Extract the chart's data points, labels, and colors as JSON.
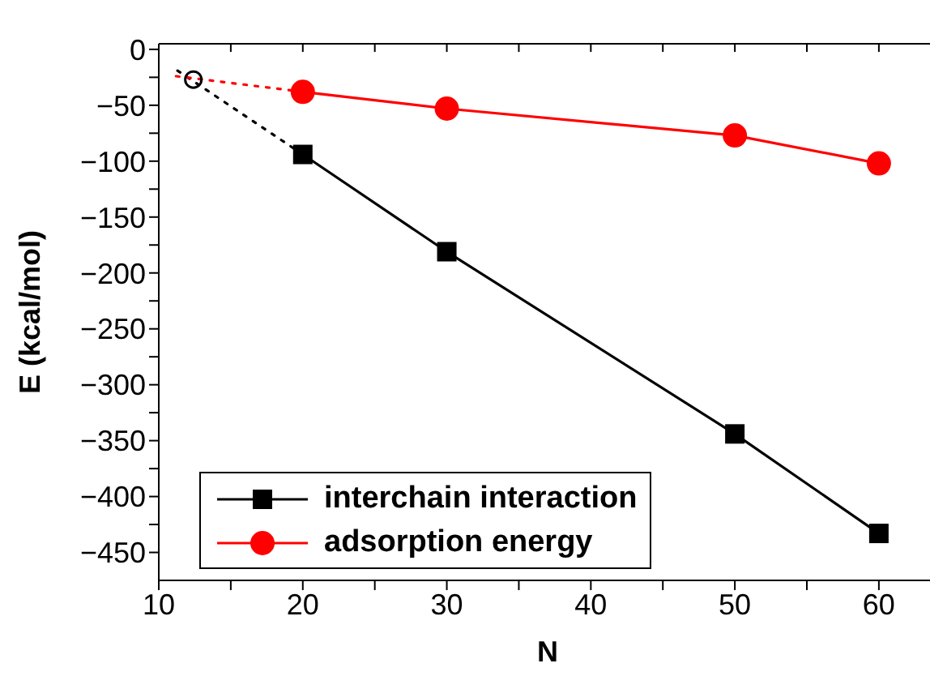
{
  "chart_data": {
    "type": "line",
    "xlabel": "N",
    "ylabel": "E (kcal/mol)",
    "xlim": [
      10,
      64
    ],
    "ylim": [
      -475,
      5
    ],
    "xticks": [
      10,
      {
        "value": 15,
        "label": null
      },
      20,
      {
        "value": 25,
        "label": null
      },
      30,
      {
        "value": 35,
        "label": null
      },
      40,
      {
        "value": 45,
        "label": null
      },
      50,
      {
        "value": 55,
        "label": null
      },
      60
    ],
    "yticks": [
      0,
      {
        "value": -25,
        "label": null
      },
      -50,
      {
        "value": -75,
        "label": null
      },
      -100,
      {
        "value": -125,
        "label": null
      },
      -150,
      {
        "value": -175,
        "label": null
      },
      -200,
      {
        "value": -225,
        "label": null
      },
      -250,
      {
        "value": -275,
        "label": null
      },
      -300,
      {
        "value": -325,
        "label": null
      },
      -350,
      {
        "value": -375,
        "label": null
      },
      -400,
      {
        "value": -425,
        "label": null
      },
      -450
    ],
    "series": [
      {
        "name": "interchain interaction",
        "color": "#000000",
        "x": [
          20,
          30,
          50,
          60
        ],
        "values": [
          -94,
          -181,
          -344,
          -433
        ],
        "marker": "square",
        "line_style": "solid"
      },
      {
        "name": "adsorption energy",
        "color": "#ff0000",
        "x": [
          20,
          30,
          50,
          60
        ],
        "values": [
          -38,
          -53,
          -77,
          -102
        ],
        "marker": "circle",
        "line_style": "solid"
      },
      {
        "color": "#000000",
        "x": [
          11.3,
          20
        ],
        "values": [
          -19,
          -94
        ],
        "marker": "none",
        "line_style": "dotted"
      },
      {
        "color": "#ff0000",
        "x": [
          11.2,
          20
        ],
        "values": [
          -24,
          -38
        ],
        "marker": "none",
        "line_style": "dotted"
      },
      {
        "type": "scatter",
        "color": "#000000",
        "x": [
          12.4
        ],
        "values": [
          -27
        ],
        "marker": "circle"
      }
    ],
    "legend": "bottom left"
  }
}
